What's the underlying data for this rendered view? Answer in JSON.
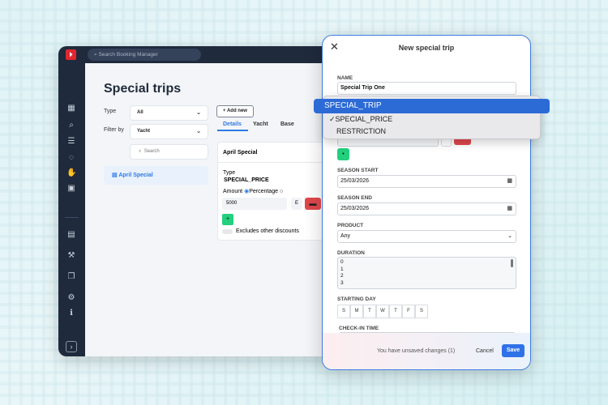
{
  "app": {
    "search_placeholder": "Search Booking Manager",
    "page_title": "Special trips",
    "filters": {
      "type_label": "Type",
      "type_value": "All",
      "filter_by_label": "Filter by",
      "filter_by_value": "Yacht",
      "search_placeholder": "Search"
    },
    "list": [
      {
        "label": "April Special"
      }
    ],
    "add_new": "+ Add new",
    "tabs": [
      {
        "label": "Details",
        "active": true
      },
      {
        "label": "Yacht"
      },
      {
        "label": "Base"
      }
    ],
    "card": {
      "title": "April Special",
      "type_label": "Type",
      "type_value": "SPECIAL_PRICE",
      "amount_label": "Amount",
      "percentage_label": "Percentage",
      "amount_value": "5000",
      "currency": "E",
      "excludes_label": "Excludes other discounts"
    }
  },
  "modal": {
    "title": "New special trip",
    "name_label": "NAME",
    "name_value": "Special Trip One",
    "season_start_label": "SEASON START",
    "season_start_value": "25/03/2026",
    "season_end_label": "SEASON END",
    "season_end_value": "25/03/2026",
    "product_label": "PRODUCT",
    "product_value": "Any",
    "duration_label": "DURATION",
    "duration_options": [
      "0",
      "1",
      "2",
      "3"
    ],
    "starting_day_label": "STARTING DAY",
    "days": [
      "S",
      "M",
      "T",
      "W",
      "T",
      "F",
      "S"
    ],
    "checkin_label": "CHECK-IN TIME",
    "unsaved": "You have unsaved changes (1)",
    "cancel": "Cancel",
    "save": "Save"
  },
  "dropdown": {
    "options": [
      "SPECIAL_TRIP",
      "SPECIAL_PRICE",
      "RESTRICTION"
    ],
    "highlighted": "SPECIAL_TRIP",
    "checked": "SPECIAL_PRICE"
  },
  "colors": {
    "accent": "#2f7ae5",
    "sidebar": "#1f2a3c",
    "danger": "#e0474c",
    "success": "#22d07e"
  }
}
